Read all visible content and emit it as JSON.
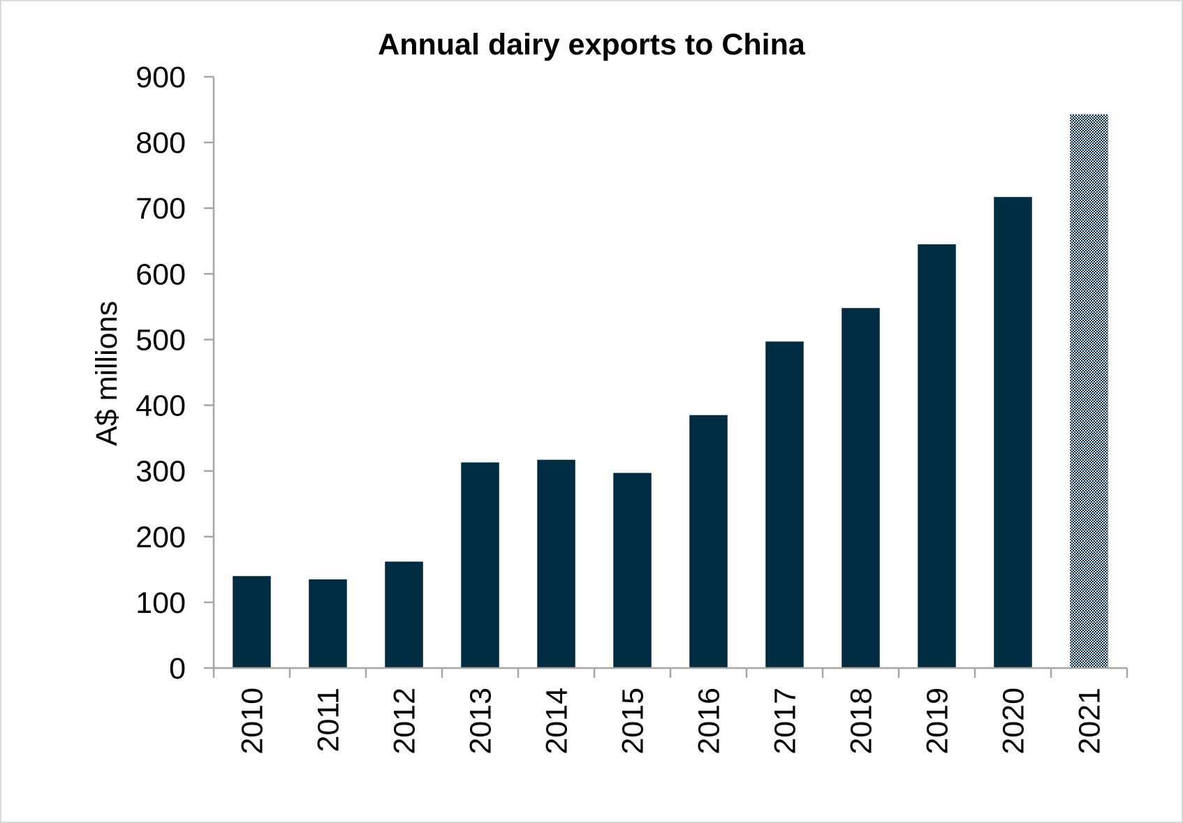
{
  "chart_data": {
    "type": "bar",
    "title": "Annual dairy exports to China",
    "xlabel": "",
    "ylabel": "A$ millions",
    "ylim": [
      0,
      900
    ],
    "yticks": [
      0,
      100,
      200,
      300,
      400,
      500,
      600,
      700,
      800,
      900
    ],
    "categories": [
      "2010",
      "2011",
      "2012",
      "2013",
      "2014",
      "2015",
      "2016",
      "2017",
      "2018",
      "2019",
      "2020",
      "2021"
    ],
    "values": [
      140,
      135,
      162,
      313,
      317,
      297,
      385,
      497,
      548,
      645,
      717,
      843
    ],
    "grid": false,
    "legend": "none",
    "colors": {
      "bar": "#012b40",
      "axis": "#a6a6a6",
      "pattern_bg": "#e8eef1"
    },
    "patterned_categories": [
      "2021"
    ]
  }
}
